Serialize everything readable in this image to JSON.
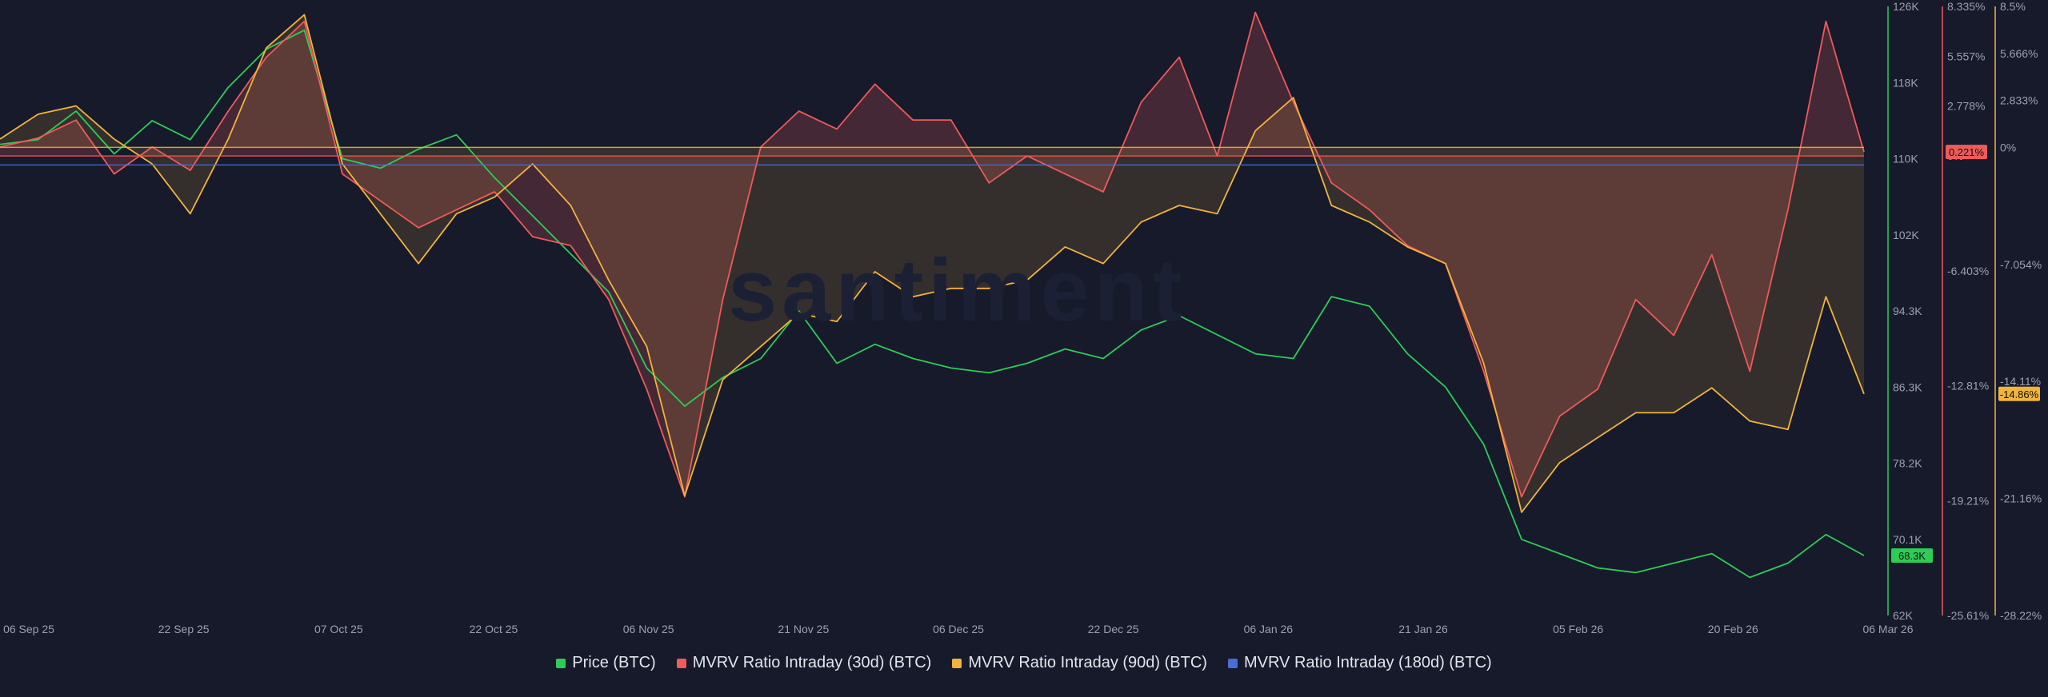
{
  "watermark": "santiment",
  "legend": [
    {
      "label": "Price (BTC)",
      "color": "#2ecc55"
    },
    {
      "label": "MVRV Ratio Intraday (30d) (BTC)",
      "color": "#ef5a5a"
    },
    {
      "label": "MVRV Ratio Intraday (90d) (BTC)",
      "color": "#f2b33d"
    },
    {
      "label": "MVRV Ratio Intraday (180d) (BTC)",
      "color": "#4a6cd8"
    }
  ],
  "chart_data": {
    "type": "line",
    "x_ticks": [
      "06 Sep 25",
      "22 Sep 25",
      "07 Oct 25",
      "22 Oct 25",
      "06 Nov 25",
      "21 Nov 25",
      "06 Dec 25",
      "22 Dec 25",
      "06 Jan 26",
      "21 Jan 26",
      "05 Feb 26",
      "20 Feb 26",
      "06 Mar 26"
    ],
    "axes": {
      "price": {
        "ticks": [
          "126K",
          "118K",
          "110K",
          "102K",
          "94.3K",
          "86.3K",
          "78.2K",
          "70.1K",
          "62K"
        ],
        "range": [
          62000,
          126000
        ],
        "color": "#2ecc55",
        "current": "68.3K"
      },
      "mvrv30": {
        "ticks": [
          "8.335%",
          "5.557%",
          "2.778%",
          "0%",
          "-6.403%",
          "-12.81%",
          "-19.21%",
          "-25.61%"
        ],
        "range": [
          -25.61,
          8.335
        ],
        "color": "#ef5a5a",
        "current": "0.221%"
      },
      "mvrv90": {
        "ticks": [
          "8.5%",
          "5.666%",
          "2.833%",
          "0%",
          "-7.054%",
          "-14.11%",
          "-21.16%",
          "-28.22%"
        ],
        "range": [
          -28.22,
          8.5
        ],
        "color": "#f2b33d",
        "current": "-14.86%"
      }
    },
    "series": [
      {
        "name": "Price (BTC)",
        "axis": "price",
        "color": "#2ecc55",
        "values": [
          111500,
          112000,
          115000,
          110500,
          114000,
          112000,
          117500,
          121500,
          123500,
          110000,
          109000,
          111000,
          112500,
          108000,
          104000,
          100000,
          96000,
          88000,
          84000,
          87000,
          89000,
          94000,
          88500,
          90500,
          89000,
          88000,
          87500,
          88500,
          90000,
          89000,
          92000,
          93500,
          91500,
          89500,
          89000,
          95500,
          94500,
          89500,
          86000,
          80000,
          70000,
          68500,
          67000,
          66500,
          67500,
          68500,
          66000,
          67500,
          70500,
          68300
        ]
      },
      {
        "name": "MVRV Ratio Intraday (30d) (BTC)",
        "axis": "mvrv30",
        "color": "#ef5a5a",
        "values": [
          0.5,
          1.0,
          2.0,
          -1.0,
          0.5,
          -0.8,
          2.5,
          5.5,
          7.5,
          -1.0,
          -2.5,
          -4.0,
          -3.0,
          -2.0,
          -4.5,
          -5.0,
          -8.0,
          -13.0,
          -19.0,
          -8.0,
          0.5,
          2.5,
          1.5,
          4.0,
          2.0,
          2.0,
          -1.5,
          0.0,
          -1.0,
          -2.0,
          3.0,
          5.5,
          0.0,
          8.0,
          3.0,
          -1.5,
          -3.0,
          -5.0,
          -6.0,
          -12.0,
          -19.0,
          -14.5,
          -13.0,
          -8.0,
          -10.0,
          -5.5,
          -12.0,
          -3.0,
          7.5,
          0.221
        ]
      },
      {
        "name": "MVRV Ratio Intraday (90d) (BTC)",
        "axis": "mvrv90",
        "color": "#f2b33d",
        "values": [
          0.5,
          2.0,
          2.5,
          0.5,
          -1.0,
          -4.0,
          0.5,
          6.0,
          8.0,
          -1.0,
          -4.0,
          -7.0,
          -4.0,
          -3.0,
          -1.0,
          -3.5,
          -8.0,
          -12.0,
          -21.0,
          -14.0,
          -12.0,
          -10.0,
          -10.5,
          -7.5,
          -9.0,
          -8.5,
          -8.5,
          -8.0,
          -6.0,
          -7.0,
          -4.5,
          -3.5,
          -4.0,
          1.0,
          3.0,
          -3.5,
          -4.5,
          -6.0,
          -7.0,
          -13.0,
          -22.0,
          -19.0,
          -17.5,
          -16.0,
          -16.0,
          -14.5,
          -16.5,
          -17.0,
          -9.0,
          -14.86
        ]
      }
    ]
  }
}
